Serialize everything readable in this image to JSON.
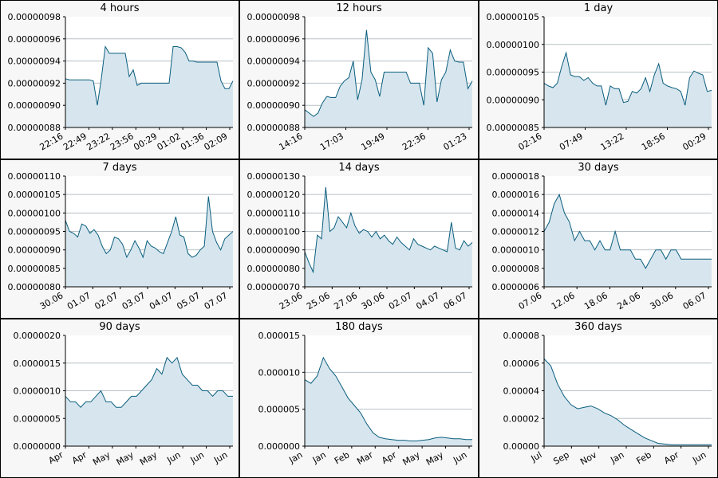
{
  "chart_data": [
    {
      "type": "area",
      "title": "4 hours",
      "ylim": [
        8.8e-08,
        9.8e-08
      ],
      "yticks": [
        "0.00000098",
        "0.00000096",
        "0.00000094",
        "0.00000092",
        "0.00000090",
        "0.00000088"
      ],
      "xticks": [
        "22:16",
        "22:49",
        "23:22",
        "23:56",
        "00:29",
        "01:02",
        "01:36",
        "02:09"
      ],
      "y": [
        9.24e-08,
        9.23e-08,
        9.23e-08,
        9.23e-08,
        9.23e-08,
        9.23e-08,
        9.23e-08,
        9.22e-08,
        9e-08,
        9.24e-08,
        9.53e-08,
        9.47e-08,
        9.47e-08,
        9.47e-08,
        9.47e-08,
        9.47e-08,
        9.26e-08,
        9.32e-08,
        9.18e-08,
        9.2e-08,
        9.2e-08,
        9.2e-08,
        9.2e-08,
        9.2e-08,
        9.2e-08,
        9.2e-08,
        9.2e-08,
        9.53e-08,
        9.53e-08,
        9.52e-08,
        9.48e-08,
        9.4e-08,
        9.4e-08,
        9.39e-08,
        9.39e-08,
        9.39e-08,
        9.39e-08,
        9.39e-08,
        9.39e-08,
        9.22e-08,
        9.15e-08,
        9.15e-08,
        9.22e-08
      ],
      "grid": true
    },
    {
      "type": "area",
      "title": "12 hours",
      "ylim": [
        8.8e-08,
        9.8e-08
      ],
      "yticks": [
        "0.00000098",
        "0.00000096",
        "0.00000094",
        "0.00000092",
        "0.00000090",
        "0.00000088"
      ],
      "xticks": [
        "14:16",
        "17:03",
        "19:49",
        "22:36",
        "01:23"
      ],
      "y": [
        8.96e-08,
        8.93e-08,
        8.9e-08,
        8.93e-08,
        9.02e-08,
        9.08e-08,
        9.07e-08,
        9.07e-08,
        9.17e-08,
        9.22e-08,
        9.25e-08,
        9.4e-08,
        9.05e-08,
        9.23e-08,
        9.68e-08,
        9.3e-08,
        9.23e-08,
        9.08e-08,
        9.3e-08,
        9.3e-08,
        9.3e-08,
        9.3e-08,
        9.3e-08,
        9.3e-08,
        9.2e-08,
        9.2e-08,
        9.2e-08,
        9e-08,
        9.52e-08,
        9.47e-08,
        9.03e-08,
        9.23e-08,
        9.3e-08,
        9.5e-08,
        9.4e-08,
        9.39e-08,
        9.39e-08,
        9.15e-08,
        9.22e-08
      ],
      "grid": true
    },
    {
      "type": "area",
      "title": "1 day",
      "ylim": [
        8.5e-08,
        1.05e-07
      ],
      "yticks": [
        "0.00000105",
        "0.00000100",
        "0.00000095",
        "0.00000090",
        "0.00000085"
      ],
      "xticks": [
        "02:16",
        "07:49",
        "13:22",
        "18:56",
        "00:29"
      ],
      "y": [
        9.3e-08,
        9.25e-08,
        9.22e-08,
        9.3e-08,
        9.6e-08,
        9.85e-08,
        9.45e-08,
        9.42e-08,
        9.42e-08,
        9.35e-08,
        9.4e-08,
        9.3e-08,
        9.25e-08,
        9.25e-08,
        8.9e-08,
        9.25e-08,
        9.2e-08,
        9.2e-08,
        8.95e-08,
        8.97e-08,
        9.15e-08,
        9.12e-08,
        9.2e-08,
        9.4e-08,
        9.15e-08,
        9.45e-08,
        9.65e-08,
        9.3e-08,
        9.25e-08,
        9.22e-08,
        9.2e-08,
        9.15e-08,
        8.9e-08,
        9.4e-08,
        9.52e-08,
        9.48e-08,
        9.45e-08,
        9.15e-08,
        9.17e-08
      ],
      "grid": true
    },
    {
      "type": "area",
      "title": "7 days",
      "ylim": [
        8e-08,
        1.1e-07
      ],
      "yticks": [
        "0.00000110",
        "0.00000105",
        "0.00000100",
        "0.00000095",
        "0.00000090",
        "0.00000085",
        "0.00000080"
      ],
      "xticks": [
        "30.06",
        "01.07",
        "02.07",
        "03.07",
        "04.07",
        "05.07",
        "07.07"
      ],
      "y": [
        9.8e-08,
        9.5e-08,
        9.45e-08,
        9.35e-08,
        9.7e-08,
        9.65e-08,
        9.45e-08,
        9.55e-08,
        9.4e-08,
        9.1e-08,
        8.9e-08,
        9e-08,
        9.35e-08,
        9.3e-08,
        9.15e-08,
        8.8e-08,
        9e-08,
        9.25e-08,
        9.05e-08,
        8.8e-08,
        9.25e-08,
        9.1e-08,
        9.05e-08,
        8.95e-08,
        8.9e-08,
        9.2e-08,
        9.5e-08,
        9.9e-08,
        9.4e-08,
        9.35e-08,
        8.9e-08,
        8.8e-08,
        8.85e-08,
        9e-08,
        9.1e-08,
        1.045e-07,
        9.5e-08,
        9.2e-08,
        9e-08,
        9.3e-08,
        9.4e-08,
        9.5e-08
      ],
      "grid": true
    },
    {
      "type": "area",
      "title": "14 days",
      "ylim": [
        7e-08,
        1.3e-07
      ],
      "yticks": [
        "0.00000130",
        "0.00000120",
        "0.00000110",
        "0.00000100",
        "0.00000090",
        "0.00000080",
        "0.00000070"
      ],
      "xticks": [
        "23.06",
        "25.06",
        "27.06",
        "30.06",
        "02.07",
        "04.07",
        "06.07"
      ],
      "y": [
        8.9e-08,
        8.3e-08,
        7.8e-08,
        9.8e-08,
        9.6e-08,
        1.24e-07,
        1e-07,
        1.02e-07,
        1.08e-07,
        1.05e-07,
        1.02e-07,
        1.1e-07,
        1.03e-07,
        9.9e-08,
        1.01e-07,
        1e-07,
        9.7e-08,
        1e-07,
        9.6e-08,
        9.8e-08,
        9.5e-08,
        9.3e-08,
        9.7e-08,
        9.4e-08,
        9.2e-08,
        9e-08,
        9.6e-08,
        9.3e-08,
        9.2e-08,
        9.1e-08,
        9e-08,
        9.2e-08,
        9.1e-08,
        9e-08,
        8.9e-08,
        1.05e-07,
        9.1e-08,
        9e-08,
        9.5e-08,
        9.2e-08,
        9.4e-08
      ],
      "grid": true
    },
    {
      "type": "area",
      "title": "30 days",
      "ylim": [
        6e-07,
        1.8e-06
      ],
      "yticks": [
        "0.0000018",
        "0.0000016",
        "0.0000014",
        "0.0000012",
        "0.0000010",
        "0.0000008",
        "0.0000006"
      ],
      "xticks": [
        "07.06",
        "12.06",
        "18.06",
        "24.06",
        "30.06",
        "06.07"
      ],
      "y": [
        1.2e-06,
        1.3e-06,
        1.5e-06,
        1.6e-06,
        1.4e-06,
        1.3e-06,
        1.1e-06,
        1.2e-06,
        1.1e-06,
        1.1e-06,
        1e-06,
        1.1e-06,
        1e-06,
        1e-06,
        1.2e-06,
        1e-06,
        1e-06,
        1e-06,
        9e-07,
        9e-07,
        8e-07,
        9e-07,
        1e-06,
        1e-06,
        9e-07,
        1e-06,
        1e-06,
        9e-07,
        9e-07,
        9e-07,
        9e-07,
        9e-07,
        9e-07,
        9e-07
      ],
      "grid": true
    },
    {
      "type": "area",
      "title": "90 days",
      "ylim": [
        0.0,
        2e-06
      ],
      "yticks": [
        "0.0000020",
        "0.0000015",
        "0.0000010",
        "0.0000005",
        "0.0000000"
      ],
      "xticks": [
        "Apr",
        "Apr",
        "May",
        "May",
        "May",
        "Jun",
        "Jun",
        "Jun"
      ],
      "y": [
        9e-07,
        8e-07,
        8e-07,
        7e-07,
        8e-07,
        8e-07,
        9e-07,
        1e-06,
        8e-07,
        8e-07,
        7e-07,
        7e-07,
        8e-07,
        9e-07,
        9e-07,
        1e-06,
        1.1e-06,
        1.2e-06,
        1.4e-06,
        1.3e-06,
        1.6e-06,
        1.5e-06,
        1.6e-06,
        1.3e-06,
        1.2e-06,
        1.1e-06,
        1.1e-06,
        1e-06,
        1e-06,
        9e-07,
        1e-06,
        1e-06,
        9e-07,
        9e-07
      ],
      "grid": true
    },
    {
      "type": "area",
      "title": "180 days",
      "ylim": [
        0.0,
        1.5e-05
      ],
      "yticks": [
        "0.000015",
        "0.000010",
        "0.000005",
        "0.000000"
      ],
      "xticks": [
        "Jan",
        "Jan",
        "Feb",
        "Mar",
        "Apr",
        "May",
        "May",
        "Jun"
      ],
      "y": [
        9e-06,
        8.5e-06,
        9.5e-06,
        1.2e-05,
        1.05e-05,
        9.5e-06,
        8e-06,
        6.5e-06,
        5.5e-06,
        4.5e-06,
        3e-06,
        1.8e-06,
        1.2e-06,
        1e-06,
        9e-07,
        8e-07,
        8e-07,
        7e-07,
        7e-07,
        8e-07,
        9e-07,
        1.1e-06,
        1.2e-06,
        1.1e-06,
        1e-06,
        1e-06,
        9e-07,
        9e-07
      ],
      "grid": true
    },
    {
      "type": "area",
      "title": "360 days",
      "ylim": [
        0.0,
        8e-05
      ],
      "yticks": [
        "0.00008",
        "0.00006",
        "0.00004",
        "0.00002",
        "0.00000"
      ],
      "xticks": [
        "Jul",
        "Sep",
        "Nov",
        "Jan",
        "Feb",
        "Apr",
        "Jun"
      ],
      "y": [
        6.3e-05,
        5.8e-05,
        4.5e-05,
        3.6e-05,
        3e-05,
        2.7e-05,
        2.8e-05,
        2.9e-05,
        2.7e-05,
        2.4e-05,
        2.2e-05,
        1.9e-05,
        1.5e-05,
        1.2e-05,
        9e-06,
        6e-06,
        4e-06,
        2e-06,
        1.5e-06,
        1e-06,
        1e-06,
        1e-06,
        1e-06,
        1e-06,
        1e-06,
        1e-06
      ],
      "grid": true
    }
  ],
  "colors": {
    "line": "#0b5e7e",
    "fill": "#d7e6ee",
    "grid": "#b8c0c6",
    "panel_bg": "#f7f7f7"
  }
}
